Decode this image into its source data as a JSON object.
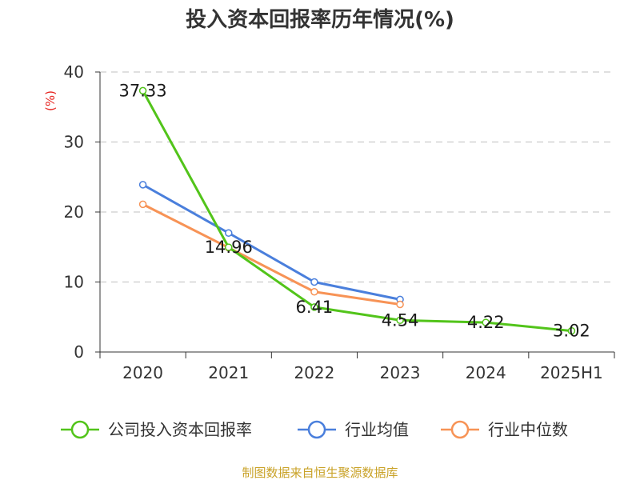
{
  "title": "投入资本回报率历年情况(%)",
  "unit_label": "(%)",
  "source": "制图数据来自恒生聚源数据库",
  "chart_data": {
    "type": "line",
    "title": "投入资本回报率历年情况(%)",
    "ylabel": "(%)",
    "xlabel": "",
    "categories": [
      "2020",
      "2021",
      "2022",
      "2023",
      "2024",
      "2025H1"
    ],
    "ylim": [
      0,
      40
    ],
    "yticks": [
      0,
      10,
      20,
      30,
      40
    ],
    "grid": true,
    "legend_position": "bottom",
    "series": [
      {
        "name": "公司投入资本回报率",
        "color": "#52c41a",
        "values": [
          37.33,
          14.96,
          6.41,
          4.54,
          4.22,
          3.02
        ],
        "labels": [
          "37.33",
          "14.96",
          "6.41",
          "4.54",
          "4.22",
          "3.02"
        ]
      },
      {
        "name": "行业均值",
        "color": "#4a7fdc",
        "values": [
          23.9,
          17.0,
          10.0,
          7.5,
          null,
          null
        ]
      },
      {
        "name": "行业中位数",
        "color": "#f79356",
        "values": [
          21.1,
          14.9,
          8.6,
          6.8,
          null,
          null
        ]
      }
    ]
  }
}
